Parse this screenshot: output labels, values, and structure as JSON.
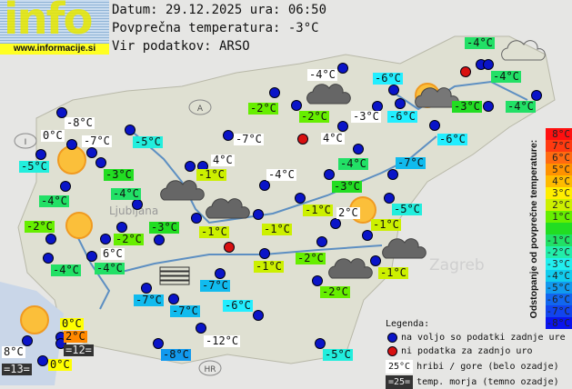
{
  "logo": {
    "text": "info",
    "url": "www.informacije.si"
  },
  "header": {
    "date_line": "Datum: 29.12.2025 ura: 06:50",
    "avg_line": "Povprečna temperatura: -3°C",
    "source_line": "Vir podatkov: ARSO"
  },
  "map_labels": {
    "ljubljana": "Ljubljana",
    "zagreb": "Zagreb",
    "austria": "A",
    "italy": "I",
    "croatia": "HR",
    "hungary": "H"
  },
  "colors": {
    "station_ok": "#0a14c8",
    "station_missing": "#d81010",
    "mountain_bg": "#ffffff",
    "sea_bg": "#333333"
  },
  "stations": [
    {
      "temp": "-4°C",
      "bg": "#22e066"
    },
    {
      "temp": "-4°C",
      "bg": "#22e066"
    },
    {
      "temp": "-4°C",
      "bg": "#22e066"
    },
    {
      "temp": "-3°C",
      "bg": "#22dd22"
    },
    {
      "temp": "-6°C",
      "bg": "#22eeff"
    },
    {
      "temp": "-4°C",
      "bg": "#ffffff"
    },
    {
      "temp": "-6°C",
      "bg": "#22eeff"
    },
    {
      "temp": "-6°C",
      "bg": "#22eeff"
    },
    {
      "temp": "-3°C",
      "bg": "#ffffff"
    },
    {
      "temp": "-2°C",
      "bg": "#66ee00"
    },
    {
      "temp": "-2°C",
      "bg": "#66ee00"
    },
    {
      "temp": "4°C",
      "bg": "#ffffff"
    },
    {
      "temp": "-4°C",
      "bg": "#22e066"
    },
    {
      "temp": "-3°C",
      "bg": "#22dd22"
    },
    {
      "temp": "-7°C",
      "bg": "#11bbee"
    },
    {
      "temp": "-1°C",
      "bg": "#ccf000"
    },
    {
      "temp": "2°C",
      "bg": "#ffffff"
    },
    {
      "temp": "-5°C",
      "bg": "#22eedd"
    },
    {
      "temp": "-1°C",
      "bg": "#ccf000"
    },
    {
      "temp": "-2°C",
      "bg": "#66ee00"
    },
    {
      "temp": "-1°C",
      "bg": "#ccf000"
    },
    {
      "temp": "-2°C",
      "bg": "#66ee00"
    },
    {
      "temp": "-5°C",
      "bg": "#22eedd"
    },
    {
      "temp": "-8°C",
      "bg": "#ffffff"
    },
    {
      "temp": "0°C",
      "bg": "#ffffff"
    },
    {
      "temp": "-7°C",
      "bg": "#ffffff"
    },
    {
      "temp": "-3°C",
      "bg": "#22dd22"
    },
    {
      "temp": "-5°C",
      "bg": "#22eedd"
    },
    {
      "temp": "-5°C",
      "bg": "#22eedd"
    },
    {
      "temp": "-4°C",
      "bg": "#22e066"
    },
    {
      "temp": "-4°C",
      "bg": "#22e066"
    },
    {
      "temp": "-7°C",
      "bg": "#ffffff"
    },
    {
      "temp": "4°C",
      "bg": "#ffffff"
    },
    {
      "temp": "-1°C",
      "bg": "#ccf000"
    },
    {
      "temp": "-4°C",
      "bg": "#ffffff"
    },
    {
      "temp": "-2°C",
      "bg": "#66ee00"
    },
    {
      "temp": "-2°C",
      "bg": "#66ee00"
    },
    {
      "temp": "6°C",
      "bg": "#ffffff"
    },
    {
      "temp": "-4°C",
      "bg": "#22e066"
    },
    {
      "temp": "-4°C",
      "bg": "#22e066"
    },
    {
      "temp": "-3°C",
      "bg": "#22dd22"
    },
    {
      "temp": "-1°C",
      "bg": "#ccf000"
    },
    {
      "temp": "-1°C",
      "bg": "#ccf000"
    },
    {
      "temp": "-1°C",
      "bg": "#ccf000"
    },
    {
      "temp": "-7°C",
      "bg": "#11bbee"
    },
    {
      "temp": "-7°C",
      "bg": "#11bbee"
    },
    {
      "temp": "-7°C",
      "bg": "#11bbee"
    },
    {
      "temp": "-6°C",
      "bg": "#22eeff"
    },
    {
      "temp": "-12°C",
      "bg": "#ffffff"
    },
    {
      "temp": "-8°C",
      "bg": "#1199ee"
    },
    {
      "temp": "8°C",
      "bg": "#ffffff"
    },
    {
      "temp": "0°C",
      "bg": "#ffff00"
    },
    {
      "temp": "0°C",
      "bg": "#ffff00"
    },
    {
      "temp": "2°C",
      "bg": "#ff8800"
    }
  ],
  "sea_temps": [
    {
      "temp": "=13="
    },
    {
      "temp": "=12="
    }
  ],
  "scale": {
    "title": "Odstopanje od povprečne temperature:",
    "steps": [
      {
        "label": "8°C",
        "color": "#ff1010"
      },
      {
        "label": "7°C",
        "color": "#ff3a10"
      },
      {
        "label": "6°C",
        "color": "#ff6a10"
      },
      {
        "label": "5°C",
        "color": "#ff9200"
      },
      {
        "label": "4°C",
        "color": "#ffbb00"
      },
      {
        "label": "3°C",
        "color": "#ffee00"
      },
      {
        "label": "2°C",
        "color": "#ccf000"
      },
      {
        "label": "1°C",
        "color": "#66ee00"
      },
      {
        "label": "",
        "color": "#22dd22"
      },
      {
        "label": "-1°C",
        "color": "#22e066"
      },
      {
        "label": "-2°C",
        "color": "#22eeaa"
      },
      {
        "label": "-3°C",
        "color": "#22eeee"
      },
      {
        "label": "-4°C",
        "color": "#11ccee"
      },
      {
        "label": "-5°C",
        "color": "#1199ee"
      },
      {
        "label": "-6°C",
        "color": "#1166ee"
      },
      {
        "label": "-7°C",
        "color": "#1144ee"
      },
      {
        "label": "-8°C",
        "color": "#0a14ee"
      }
    ]
  },
  "legend": {
    "title": "Legenda:",
    "ok": "na voljo so podatki zadnje ure",
    "missing": "ni podatka za zadnjo uro",
    "mountain_sample": "25°C",
    "mountain": "hribi / gore (belo ozadje)",
    "sea_sample": "=25=",
    "sea": "temp. morja (temno ozadje)"
  }
}
